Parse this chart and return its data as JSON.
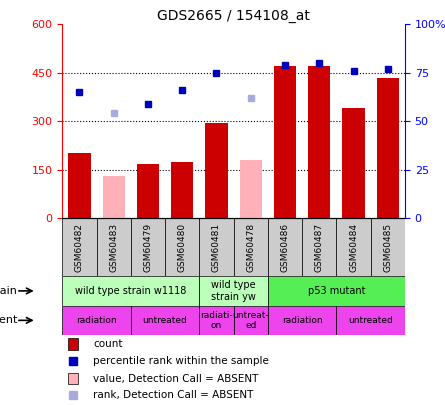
{
  "title": "GDS2665 / 154108_at",
  "samples": [
    "GSM60482",
    "GSM60483",
    "GSM60479",
    "GSM60480",
    "GSM60481",
    "GSM60478",
    "GSM60486",
    "GSM60487",
    "GSM60484",
    "GSM60485"
  ],
  "count_values": [
    200,
    null,
    168,
    175,
    295,
    null,
    470,
    472,
    340,
    435
  ],
  "count_absent_values": [
    null,
    130,
    null,
    null,
    null,
    180,
    null,
    null,
    null,
    null
  ],
  "rank_pct": [
    65,
    null,
    59,
    66,
    75,
    null,
    79,
    80,
    76,
    77
  ],
  "rank_absent_pct": [
    null,
    54,
    null,
    null,
    null,
    62,
    null,
    null,
    null,
    null
  ],
  "ylim_left": [
    0,
    600
  ],
  "ylim_right": [
    0,
    100
  ],
  "yticks_left": [
    0,
    150,
    300,
    450,
    600
  ],
  "yticks_right": [
    0,
    25,
    50,
    75,
    100
  ],
  "ytick_labels_right": [
    "0",
    "25",
    "50",
    "75",
    "100%"
  ],
  "bar_color": "#cc0000",
  "bar_absent_color": "#ffb0b8",
  "dot_color": "#0000bb",
  "dot_absent_color": "#aaaadd",
  "strain_groups": [
    {
      "label": "wild type strain w1118",
      "start": 0,
      "end": 4,
      "color": "#bbffbb"
    },
    {
      "label": "wild type\nstrain yw",
      "start": 4,
      "end": 6,
      "color": "#bbffbb"
    },
    {
      "label": "p53 mutant",
      "start": 6,
      "end": 10,
      "color": "#55ee55"
    }
  ],
  "agent_groups": [
    {
      "label": "radiation",
      "start": 0,
      "end": 2,
      "color": "#ee44ee"
    },
    {
      "label": "untreated",
      "start": 2,
      "end": 4,
      "color": "#ee44ee"
    },
    {
      "label": "radiati-\non",
      "start": 4,
      "end": 5,
      "color": "#ee44ee"
    },
    {
      "label": "untreat-\ned",
      "start": 5,
      "end": 6,
      "color": "#ee44ee"
    },
    {
      "label": "radiation",
      "start": 6,
      "end": 8,
      "color": "#ee44ee"
    },
    {
      "label": "untreated",
      "start": 8,
      "end": 10,
      "color": "#ee44ee"
    }
  ],
  "legend_items": [
    {
      "label": "count",
      "color": "#cc0000",
      "type": "bar"
    },
    {
      "label": "percentile rank within the sample",
      "color": "#0000bb",
      "type": "dot"
    },
    {
      "label": "value, Detection Call = ABSENT",
      "color": "#ffb0b8",
      "type": "bar"
    },
    {
      "label": "rank, Detection Call = ABSENT",
      "color": "#aaaadd",
      "type": "dot"
    }
  ]
}
